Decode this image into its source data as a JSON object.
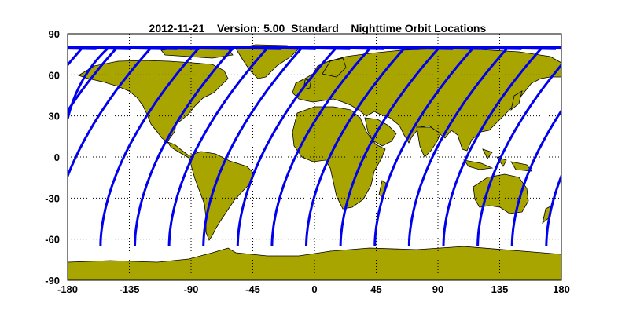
{
  "header": {
    "date": "2012-11-21",
    "version": "Version: 5.00",
    "product": "Standard",
    "caption": "Nighttime Orbit Locations"
  },
  "chart_data": {
    "type": "map",
    "projection": "equirectangular",
    "xlim": [
      -180,
      180
    ],
    "ylim": [
      -90,
      90
    ],
    "xticks": [
      "-180",
      "-135",
      "-90",
      "-45",
      "0",
      "45",
      "90",
      "135",
      "180"
    ],
    "yticks": [
      "90",
      "60",
      "30",
      "0",
      "-30",
      "-60",
      "-90"
    ],
    "grid": "dotted",
    "colors": {
      "land": "#a9a500",
      "coast": "#000000",
      "orbit": "#0000ee",
      "grid": "#000000"
    },
    "orbit_tracks": {
      "series": [
        {
          "lon_at_-65": -156,
          "start": [
            -180,
            28
          ]
        },
        {
          "lon_at_-65": -131
        },
        {
          "lon_at_-65": -106
        },
        {
          "lon_at_-65": -81
        },
        {
          "lon_at_-65": -56
        },
        {
          "lon_at_-65": -31
        },
        {
          "lon_at_-65": -6
        },
        {
          "lon_at_-65": 19
        },
        {
          "lon_at_-65": 44
        },
        {
          "lon_at_-65": 69
        },
        {
          "lon_at_-65": 94
        },
        {
          "lon_at_-65": 119
        },
        {
          "lon_at_-65": 144
        },
        {
          "lon_at_-65": 169
        }
      ],
      "lat_range": [
        -65,
        80
      ]
    }
  }
}
